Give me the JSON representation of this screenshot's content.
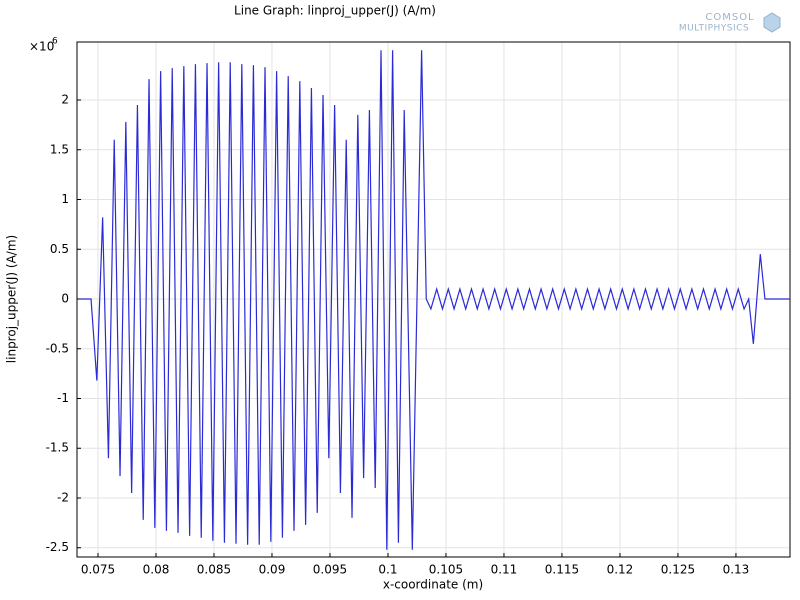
{
  "chart_data": {
    "type": "line",
    "title": "Line Graph: linproj_upper(J) (A/m)",
    "xlabel": "x-coordinate (m)",
    "ylabel": "linproj_upper(J) (A/m)",
    "y_multiplier": "×10",
    "y_multiplier_exponent": "6",
    "logo": [
      "COMSOL",
      "MULTIPHYSICS"
    ],
    "color": "#2b2bd6",
    "grid": true,
    "xlim": [
      0.07319,
      0.13466
    ],
    "ylim": [
      -2.593,
      2.583
    ],
    "xticks": [
      0.075,
      0.08,
      0.085,
      0.09,
      0.095,
      0.1,
      0.105,
      0.11,
      0.115,
      0.12,
      0.125,
      0.13
    ],
    "yticks": [
      -2.5,
      -2,
      -1.5,
      -1,
      -0.5,
      0,
      0.5,
      1,
      1.5,
      2
    ],
    "x": [
      0.0735,
      0.0744,
      0.0749,
      0.0754,
      0.0759,
      0.0764,
      0.0769,
      0.0774,
      0.0779,
      0.0784,
      0.0789,
      0.0794,
      0.0799,
      0.0804,
      0.0809,
      0.0814,
      0.0819,
      0.0824,
      0.0829,
      0.0834,
      0.0839,
      0.0844,
      0.0849,
      0.0854,
      0.0859,
      0.0864,
      0.0869,
      0.0874,
      0.0879,
      0.0884,
      0.0889,
      0.0894,
      0.0899,
      0.0904,
      0.0909,
      0.0914,
      0.0919,
      0.0924,
      0.0929,
      0.0934,
      0.0939,
      0.0944,
      0.0949,
      0.0954,
      0.0959,
      0.0964,
      0.0969,
      0.0974,
      0.0979,
      0.0984,
      0.0989,
      0.0994,
      0.0999,
      0.1004,
      0.1009,
      0.1014,
      0.1021,
      0.1029,
      0.1033,
      0.1037,
      0.1042,
      0.1047,
      0.1052,
      0.1057,
      0.1062,
      0.1067,
      0.1072,
      0.1077,
      0.1082,
      0.1087,
      0.1092,
      0.1097,
      0.1102,
      0.1107,
      0.1112,
      0.1117,
      0.1122,
      0.1127,
      0.1132,
      0.1137,
      0.1142,
      0.1147,
      0.1152,
      0.1157,
      0.1162,
      0.1167,
      0.1172,
      0.1177,
      0.1182,
      0.1187,
      0.1192,
      0.1197,
      0.1202,
      0.1207,
      0.1212,
      0.1217,
      0.1222,
      0.1227,
      0.1232,
      0.1237,
      0.1242,
      0.1247,
      0.1252,
      0.1257,
      0.1262,
      0.1267,
      0.1272,
      0.1277,
      0.1282,
      0.1287,
      0.1292,
      0.1297,
      0.1302,
      0.1307,
      0.1311,
      0.1315,
      0.1321,
      0.1325,
      0.1346
    ],
    "y": [
      0,
      0,
      -0.82,
      0.82,
      -1.6,
      1.6,
      -1.78,
      1.78,
      -1.95,
      1.95,
      -2.22,
      2.21,
      -2.3,
      2.29,
      -2.33,
      2.32,
      -2.35,
      2.34,
      -2.38,
      2.36,
      -2.4,
      2.37,
      -2.43,
      2.38,
      -2.45,
      2.38,
      -2.46,
      2.36,
      -2.47,
      2.35,
      -2.47,
      2.33,
      -2.44,
      2.29,
      -2.4,
      2.24,
      -2.33,
      2.19,
      -2.27,
      2.12,
      -2.15,
      2.05,
      -1.6,
      1.95,
      -1.95,
      1.6,
      -2.2,
      1.85,
      -1.8,
      1.9,
      -1.9,
      2.5,
      -2.52,
      2.5,
      -2.45,
      1.9,
      -2.52,
      2.5,
      0,
      -0.1,
      0.1,
      -0.1,
      0.1,
      -0.1,
      0.1,
      -0.1,
      0.1,
      -0.1,
      0.1,
      -0.1,
      0.1,
      -0.1,
      0.1,
      -0.1,
      0.1,
      -0.1,
      0.1,
      -0.1,
      0.1,
      -0.1,
      0.1,
      -0.1,
      0.1,
      -0.1,
      0.1,
      -0.1,
      0.1,
      -0.1,
      0.1,
      -0.1,
      0.1,
      -0.1,
      0.1,
      -0.1,
      0.1,
      -0.1,
      0.1,
      -0.1,
      0.1,
      -0.1,
      0.1,
      -0.1,
      0.1,
      -0.1,
      0.1,
      -0.1,
      0.1,
      -0.1,
      0.1,
      -0.1,
      0.1,
      -0.1,
      0.1,
      -0.1,
      0,
      -0.45,
      0.45,
      0,
      0
    ]
  }
}
